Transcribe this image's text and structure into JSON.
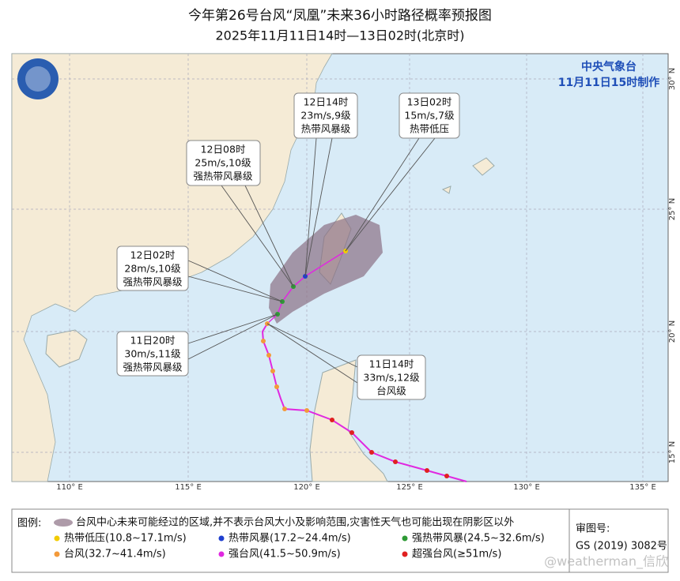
{
  "header": {
    "title": "今年第26号台风“凤凰”未来36小时路径概率预报图",
    "subtitle": "2025年11月11日14时—13日02时(北京时)"
  },
  "agency": {
    "name": "中央气象台",
    "issued": "11月11日15时制作"
  },
  "callouts": [
    {
      "time": "12日14时",
      "wind": "23m/s,9级",
      "type": "热带风暴级"
    },
    {
      "time": "13日02时",
      "wind": "15m/s,7级",
      "type": "热带低压"
    },
    {
      "time": "12日08时",
      "wind": "25m/s,10级",
      "type": "强热带风暴级"
    },
    {
      "time": "12日02时",
      "wind": "28m/s,10级",
      "type": "强热带风暴级"
    },
    {
      "time": "11日20时",
      "wind": "30m/s,11级",
      "type": "强热带风暴级"
    },
    {
      "time": "11日14时",
      "wind": "33m/s,12级",
      "type": "台风级"
    }
  ],
  "lon_labels": [
    "110° E",
    "115° E",
    "120° E",
    "125° E",
    "130° E",
    "135° E"
  ],
  "lat_labels": [
    "15° N",
    "20° N",
    "25° N",
    "30° N"
  ],
  "legend": {
    "title": "图例:",
    "cone": "台风中心未来可能经过的区域,并不表示台风大小及影响范围,灾害性天气也可能出现在阴影区以外",
    "items": [
      {
        "label": "热带低压(10.8~17.1m/s)",
        "color": "#f2cc00"
      },
      {
        "label": "热带风暴(17.2~24.4m/s)",
        "color": "#1f3fcf"
      },
      {
        "label": "强热带风暴(24.5~32.6m/s)",
        "color": "#2e9a35"
      },
      {
        "label": "台风(32.7~41.4m/s)",
        "color": "#f39a3a"
      },
      {
        "label": "强台风(41.5~50.9m/s)",
        "color": "#e028e0"
      },
      {
        "label": "超强台风(≥51m/s)",
        "color": "#e02020"
      }
    ]
  },
  "approval": {
    "label": "审图号:",
    "number": "GS (2019) 3082号"
  },
  "watermark": "@weatherman_信欣"
}
